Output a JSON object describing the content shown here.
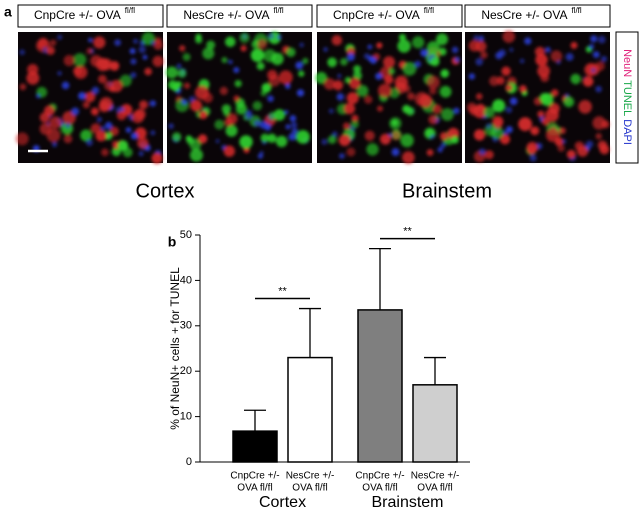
{
  "panel_a": {
    "letter": "a",
    "images": [
      {
        "text": "CnpCre +/- OVA",
        "sup": "fl/fl"
      },
      {
        "text": "NesCre +/- OVA",
        "sup": "fl/fl"
      },
      {
        "text": "CnpCre +/- OVA",
        "sup": "fl/fl"
      },
      {
        "text": "NesCre +/- OVA",
        "sup": "fl/fl"
      }
    ],
    "stain_legend": [
      {
        "text": "NeuN",
        "color": "#e0207a"
      },
      {
        "text": "TUNEL",
        "color": "#1aa84a"
      },
      {
        "text": "DAPI",
        "color": "#2233cc"
      }
    ],
    "regions": [
      "Cortex",
      "Brainstem"
    ]
  },
  "panel_b_letter": "b",
  "chart_data": {
    "type": "bar",
    "ylabel": "% of NeuN+ cells  + for TUNEL",
    "categories": [
      [
        "CnpCre +/-",
        "OVA fl/fl"
      ],
      [
        "NesCre +/-",
        "OVA fl/fl"
      ],
      [
        "CnpCre +/-",
        "OVA fl/fl"
      ],
      [
        "NesCre +/-",
        "OVA fl/fl"
      ]
    ],
    "groups": [
      "Cortex",
      "Brainstem"
    ],
    "values": [
      6.8,
      23,
      33.5,
      17
    ],
    "errors": [
      4.6,
      10.8,
      13.5,
      6
    ],
    "colors": [
      "#000000",
      "#ffffff",
      "#7f7f7f",
      "#cfcfcf"
    ],
    "ylim": [
      0,
      50
    ],
    "yticks": [
      0,
      10,
      20,
      30,
      40,
      50
    ],
    "significance": [
      {
        "text": "**",
        "from": 0,
        "to": 1
      },
      {
        "text": "**",
        "from": 2,
        "to": 3
      }
    ]
  }
}
